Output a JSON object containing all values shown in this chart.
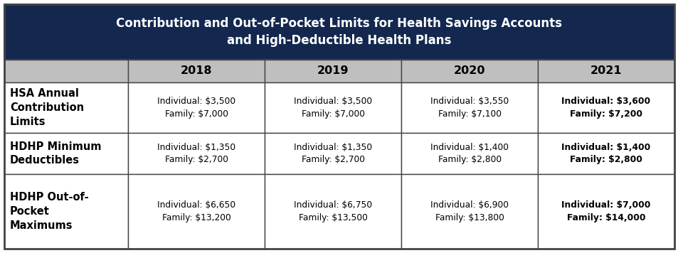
{
  "title_line1": "Contribution and Out-of-Pocket Limits for Health Savings Accounts",
  "title_line2": "and High-Deductible Health Plans",
  "title_bg": "#13274F",
  "title_color": "#FFFFFF",
  "header_bg": "#BFBFBF",
  "header_color": "#000000",
  "years": [
    "2018",
    "2019",
    "2020",
    "2021"
  ],
  "row_labels": [
    "HSA Annual\nContribution\nLimits",
    "HDHP Minimum\nDeductibles",
    "HDHP Out-of-\nPocket\nMaximums"
  ],
  "cell_data": [
    [
      "Individual: $3,500\nFamily: $7,000",
      "Individual: $3,500\nFamily: $7,000",
      "Individual: $3,550\nFamily: $7,100",
      "Individual: $3,600\nFamily: $7,200"
    ],
    [
      "Individual: $1,350\nFamily: $2,700",
      "Individual: $1,350\nFamily: $2,700",
      "Individual: $1,400\nFamily: $2,800",
      "Individual: $1,400\nFamily: $2,800"
    ],
    [
      "Individual: $6,650\nFamily: $13,200",
      "Individual: $6,750\nFamily: $13,500",
      "Individual: $6,900\nFamily: $13,800",
      "Individual: $7,000\nFamily: $14,000"
    ]
  ],
  "border_color": "#666666",
  "cell_font_size": 8.8,
  "header_font_size": 11.5,
  "row_label_font_size": 10.5,
  "title_font_size": 12.0
}
